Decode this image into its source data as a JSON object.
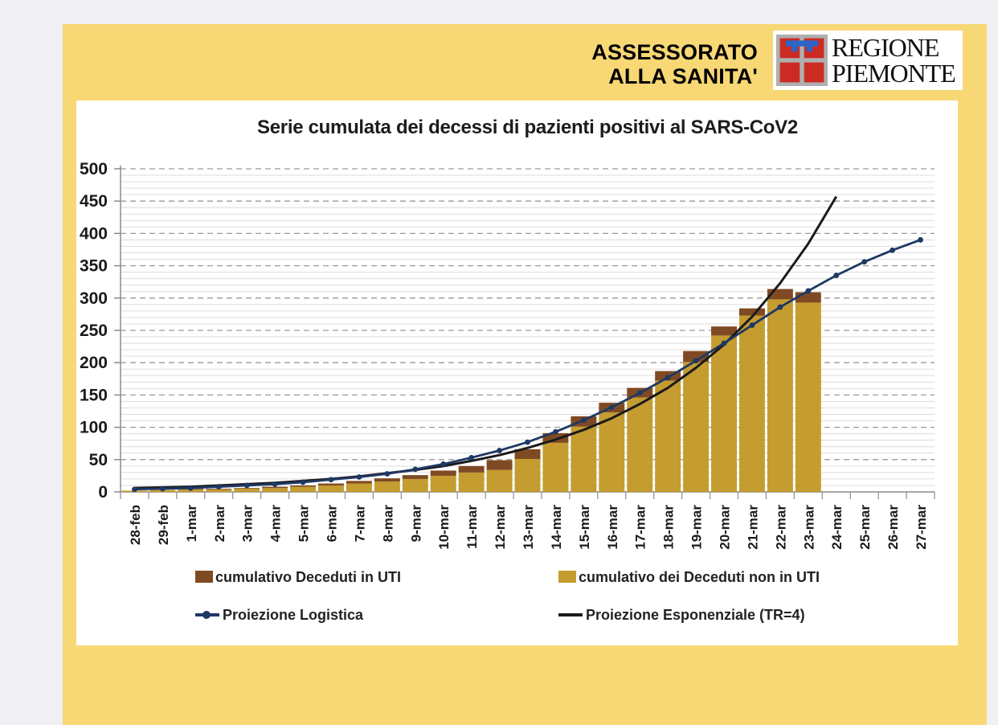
{
  "page": {
    "background": "#EFEFF4",
    "document_background": "#F7D874"
  },
  "header": {
    "dept_line1": "ASSESSORATO",
    "dept_line2": "ALLA SANITA'",
    "logo": {
      "line1": "REGIONE",
      "line2": "PIEMONTE",
      "arms_grey": "#AFAFAF",
      "arms_red": "#CC2B24",
      "arms_blue": "#2B65C8"
    }
  },
  "chart_data": {
    "type": "bar",
    "subtype": "stacked bars + 2 projection lines",
    "title": "Serie cumulata dei decessi di pazienti positivi al SARS-CoV2",
    "categories": [
      "28-feb",
      "29-feb",
      "1-mar",
      "2-mar",
      "3-mar",
      "4-mar",
      "5-mar",
      "6-mar",
      "7-mar",
      "8-mar",
      "9-mar",
      "10-mar",
      "11-mar",
      "12-mar",
      "13-mar",
      "14-mar",
      "15-mar",
      "16-mar",
      "17-mar",
      "18-mar",
      "19-mar",
      "20-mar",
      "21-mar",
      "22-mar",
      "23-mar",
      "24-mar",
      "25-mar",
      "26-mar",
      "27-mar"
    ],
    "series": [
      {
        "name": "cumulativo Deceduti in UTI",
        "type": "bar-stack-top",
        "color": "#7F4A23",
        "values": [
          0,
          0,
          1,
          1,
          1,
          2,
          2,
          3,
          4,
          5,
          6,
          8,
          10,
          15,
          15,
          15,
          16,
          15,
          15,
          15,
          17,
          14,
          11,
          16,
          16
        ]
      },
      {
        "name": "cumulativo dei Deceduti non in UTI",
        "type": "bar-stack-base",
        "color": "#C49C2F",
        "values": [
          2,
          3,
          4,
          4,
          5,
          6,
          8,
          10,
          13,
          16,
          20,
          25,
          30,
          34,
          51,
          76,
          101,
          123,
          146,
          172,
          201,
          242,
          273,
          298,
          293
        ]
      },
      {
        "name": "Proiezione Logistica",
        "type": "line-with-markers",
        "color": "#1F3864",
        "values": [
          4,
          5,
          6,
          8,
          10,
          12,
          15,
          19,
          23,
          28,
          35,
          43,
          53,
          64,
          77,
          93,
          111,
          131,
          153,
          177,
          203,
          230,
          258,
          286,
          311,
          335,
          356,
          374,
          390
        ]
      },
      {
        "name": "Proiezione Esponenziale (TR=4)",
        "type": "line",
        "color": "#1A1A1A",
        "values": [
          6,
          7,
          8,
          10,
          12,
          14,
          17,
          20,
          24,
          29,
          34,
          40,
          48,
          57,
          68,
          81,
          96,
          114,
          136,
          161,
          192,
          228,
          271,
          323,
          384,
          457
        ]
      }
    ],
    "ylim": [
      0,
      500
    ],
    "ytick": 50,
    "yminor": 10,
    "grid": "horizontal: minor solid light, major dashed grey",
    "legend_position": "bottom, two columns"
  }
}
